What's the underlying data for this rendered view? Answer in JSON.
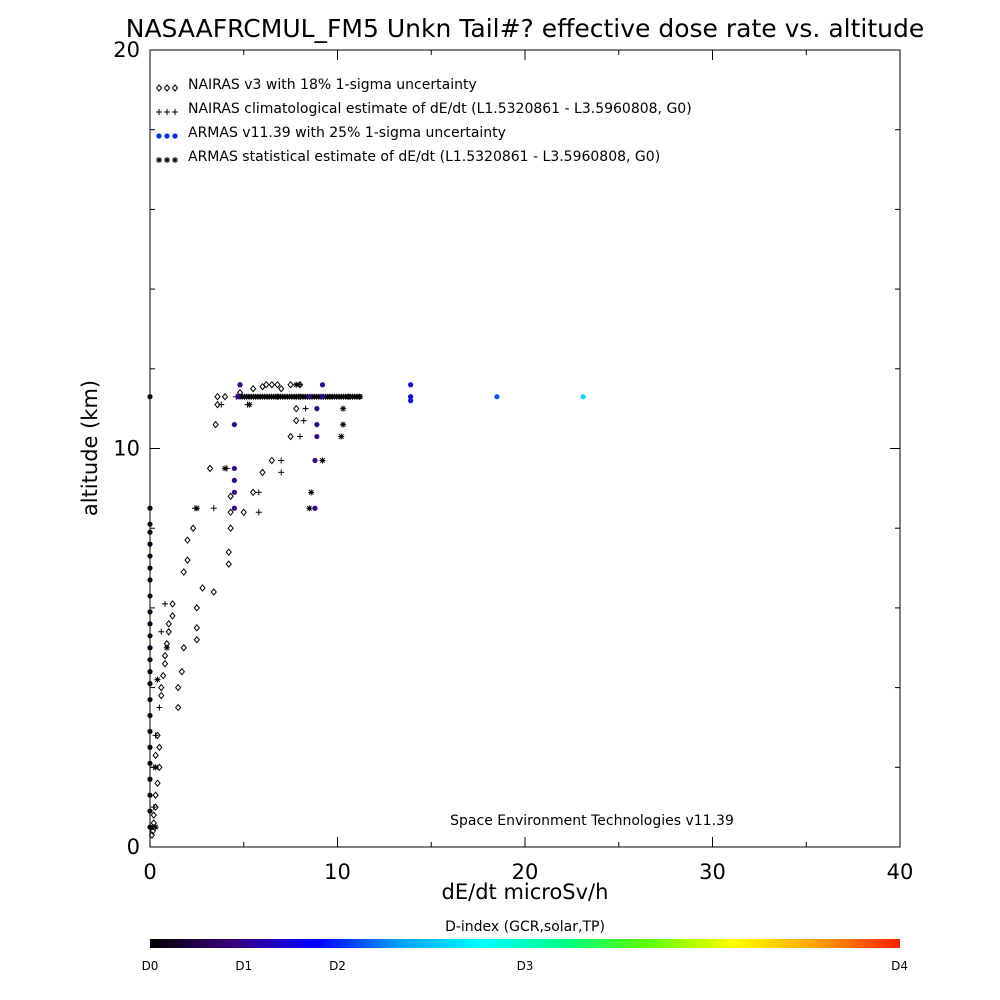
{
  "chart_data": {
    "type": "scatter",
    "title": "NASAAFRCMUL_FM5 Unkn Tail#? effective dose rate vs. altitude",
    "xlabel": "dE/dt microSv/h",
    "ylabel": "altitude (km)",
    "xlim": [
      0,
      40
    ],
    "ylim": [
      0,
      20
    ],
    "xticks": [
      "0",
      "10",
      "20",
      "30",
      "40"
    ],
    "yticks": [
      "0",
      "10",
      "20"
    ],
    "credit": "Space Environment Technologies v11.39",
    "legend_position": "top-left",
    "legend": [
      {
        "marker": "diamond",
        "label": "NAIRAS v3 with 18% 1-sigma uncertainty"
      },
      {
        "marker": "plus",
        "label": "NAIRAS climatological estimate of dE/dt (L1.5320861 - L3.5960808, G0)"
      },
      {
        "marker": "dot",
        "label": "ARMAS v11.39 with 25% 1-sigma uncertainty"
      },
      {
        "marker": "asterisk",
        "label": "ARMAS statistical estimate of dE/dt (L1.5320861 - L3.5960808, G0)"
      }
    ],
    "colorbar": {
      "title": "D-index (GCR,solar,TP)",
      "labels": [
        {
          "text": "D0",
          "pos": 0
        },
        {
          "text": "D1",
          "pos": 0.125
        },
        {
          "text": "D2",
          "pos": 0.25
        },
        {
          "text": "D3",
          "pos": 0.5
        },
        {
          "text": "D4",
          "pos": 1
        }
      ],
      "colors": [
        "#000000",
        "#3a0080",
        "#0000ff",
        "#00a0ff",
        "#00ffff",
        "#00ff80",
        "#60ff00",
        "#ffff00",
        "#ffa000",
        "#ff2000"
      ]
    },
    "series": [
      {
        "name": "NAIRAS v3",
        "marker": "diamond",
        "points": [
          [
            0.1,
            0.3
          ],
          [
            0.15,
            0.4
          ],
          [
            0.2,
            0.6
          ],
          [
            0.2,
            0.8
          ],
          [
            0.3,
            1.0
          ],
          [
            0.3,
            1.3
          ],
          [
            0.4,
            1.6
          ],
          [
            0.5,
            2.0
          ],
          [
            0.5,
            2.5
          ],
          [
            0.6,
            3.8
          ],
          [
            0.7,
            4.3
          ],
          [
            0.8,
            4.6
          ],
          [
            0.9,
            5.1
          ],
          [
            1.0,
            5.6
          ],
          [
            1.2,
            6.1
          ],
          [
            0.3,
            2.3
          ],
          [
            0.4,
            2.8
          ],
          [
            0.6,
            4.0
          ],
          [
            0.8,
            4.8
          ],
          [
            1.0,
            5.4
          ],
          [
            1.2,
            5.8
          ],
          [
            1.5,
            4.0
          ],
          [
            2.5,
            5.2
          ],
          [
            2.5,
            6.0
          ],
          [
            3.4,
            6.4
          ],
          [
            1.8,
            6.9
          ],
          [
            2.0,
            7.2
          ],
          [
            2.0,
            7.7
          ],
          [
            4.2,
            7.1
          ],
          [
            4.2,
            7.4
          ],
          [
            4.3,
            8.0
          ],
          [
            4.3,
            8.4
          ],
          [
            4.3,
            8.8
          ],
          [
            1.5,
            3.5
          ],
          [
            1.7,
            4.4
          ],
          [
            1.8,
            5.0
          ],
          [
            2.5,
            5.5
          ],
          [
            2.8,
            6.5
          ],
          [
            2.3,
            8.0
          ],
          [
            5.0,
            8.4
          ],
          [
            5.5,
            8.9
          ],
          [
            6.0,
            9.4
          ],
          [
            6.5,
            9.7
          ],
          [
            7.5,
            10.3
          ],
          [
            7.8,
            10.7
          ],
          [
            7.8,
            11.0
          ],
          [
            3.2,
            9.5
          ],
          [
            3.5,
            10.6
          ],
          [
            3.6,
            11.1
          ],
          [
            3.6,
            11.3
          ],
          [
            4.0,
            11.3
          ],
          [
            4.8,
            11.4
          ],
          [
            5.5,
            11.5
          ],
          [
            6.0,
            11.55
          ],
          [
            6.2,
            11.6
          ],
          [
            6.5,
            11.6
          ],
          [
            6.8,
            11.6
          ],
          [
            7.0,
            11.5
          ],
          [
            7.5,
            11.6
          ],
          [
            8.0,
            11.6
          ]
        ]
      },
      {
        "name": "NAIRAS climatological estimate",
        "marker": "plus",
        "points": [
          [
            0.5,
            3.5
          ],
          [
            2.4,
            8.5
          ],
          [
            3.4,
            8.5
          ],
          [
            4.1,
            9.5
          ],
          [
            5.8,
            8.4
          ],
          [
            5.8,
            8.9
          ],
          [
            7.0,
            9.7
          ],
          [
            7.0,
            9.4
          ],
          [
            8.0,
            10.3
          ],
          [
            8.2,
            10.7
          ],
          [
            8.3,
            11.0
          ],
          [
            8.0,
            11.3
          ],
          [
            8.0,
            11.6
          ],
          [
            5.2,
            11.1
          ],
          [
            4.6,
            11.3
          ],
          [
            3.8,
            11.1
          ],
          [
            0.15,
            0.5
          ],
          [
            0.2,
            1.0
          ],
          [
            0.2,
            2.0
          ],
          [
            0.3,
            2.8
          ],
          [
            0.6,
            5.4
          ],
          [
            0.8,
            6.1
          ]
        ]
      },
      {
        "name": "ARMAS v11.39",
        "marker": "dot",
        "points": [
          [
            0,
            0.5,
            0.02
          ],
          [
            0,
            0.9,
            0.02
          ],
          [
            0,
            1.3,
            0.02
          ],
          [
            0,
            1.7,
            0.02
          ],
          [
            0,
            2.1,
            0.02
          ],
          [
            0,
            2.5,
            0.02
          ],
          [
            0,
            2.9,
            0.02
          ],
          [
            0,
            3.3,
            0.02
          ],
          [
            0,
            3.7,
            0.02
          ],
          [
            0,
            4.1,
            0.02
          ],
          [
            0,
            4.4,
            0.02
          ],
          [
            0,
            4.7,
            0.02
          ],
          [
            0,
            5.0,
            0.02
          ],
          [
            0,
            5.3,
            0.02
          ],
          [
            0,
            5.6,
            0.02
          ],
          [
            0,
            5.9,
            0.02
          ],
          [
            0,
            6.3,
            0.02
          ],
          [
            0,
            6.7,
            0.02
          ],
          [
            0,
            7.0,
            0.02
          ],
          [
            0,
            7.3,
            0.02
          ],
          [
            0,
            7.6,
            0.02
          ],
          [
            0,
            7.9,
            0.02
          ],
          [
            0,
            8.1,
            0.02
          ],
          [
            0,
            8.5,
            0.02
          ],
          [
            0,
            11.3,
            0.02
          ],
          [
            4.5,
            8.5,
            0.12
          ],
          [
            4.5,
            8.9,
            0.12
          ],
          [
            4.5,
            9.2,
            0.12
          ],
          [
            4.5,
            9.5,
            0.12
          ],
          [
            4.5,
            10.6,
            0.12
          ],
          [
            4.7,
            11.3,
            0.12
          ],
          [
            4.8,
            11.6,
            0.12
          ],
          [
            8.8,
            8.5,
            0.12
          ],
          [
            8.8,
            9.7,
            0.12
          ],
          [
            8.9,
            10.3,
            0.12
          ],
          [
            8.9,
            10.6,
            0.12
          ],
          [
            8.9,
            11.0,
            0.12
          ],
          [
            9.2,
            11.3,
            0.13
          ],
          [
            9.2,
            11.6,
            0.13
          ],
          [
            8.5,
            11.3,
            0.12
          ],
          [
            13.9,
            11.6,
            0.2
          ],
          [
            13.9,
            11.3,
            0.21
          ],
          [
            13.9,
            11.2,
            0.22
          ],
          [
            18.5,
            11.3,
            0.28
          ],
          [
            23.1,
            11.3,
            0.4
          ]
        ]
      },
      {
        "name": "ARMAS statistical estimate",
        "marker": "asterisk",
        "points": [
          [
            0.3,
            0.5
          ],
          [
            0.3,
            2.0
          ],
          [
            0.4,
            4.2
          ],
          [
            0.9,
            5.0
          ],
          [
            2.5,
            8.5
          ],
          [
            4.0,
            9.5
          ],
          [
            8.5,
            8.5
          ],
          [
            8.6,
            8.9
          ],
          [
            9.2,
            9.7
          ],
          [
            10.2,
            10.3
          ],
          [
            10.3,
            10.6
          ],
          [
            10.3,
            11.0
          ],
          [
            11.2,
            11.3
          ],
          [
            5.3,
            11.1
          ],
          [
            7.8,
            11.6
          ],
          [
            7.8,
            11.3
          ],
          [
            9.6,
            11.3
          ],
          [
            10.6,
            11.3
          ],
          [
            6.8,
            11.3
          ]
        ]
      }
    ],
    "dense_segment": {
      "name": "ARMAS statistical estimate (dense run)",
      "x": [
        4.8,
        11.2
      ],
      "y": 11.3
    }
  }
}
